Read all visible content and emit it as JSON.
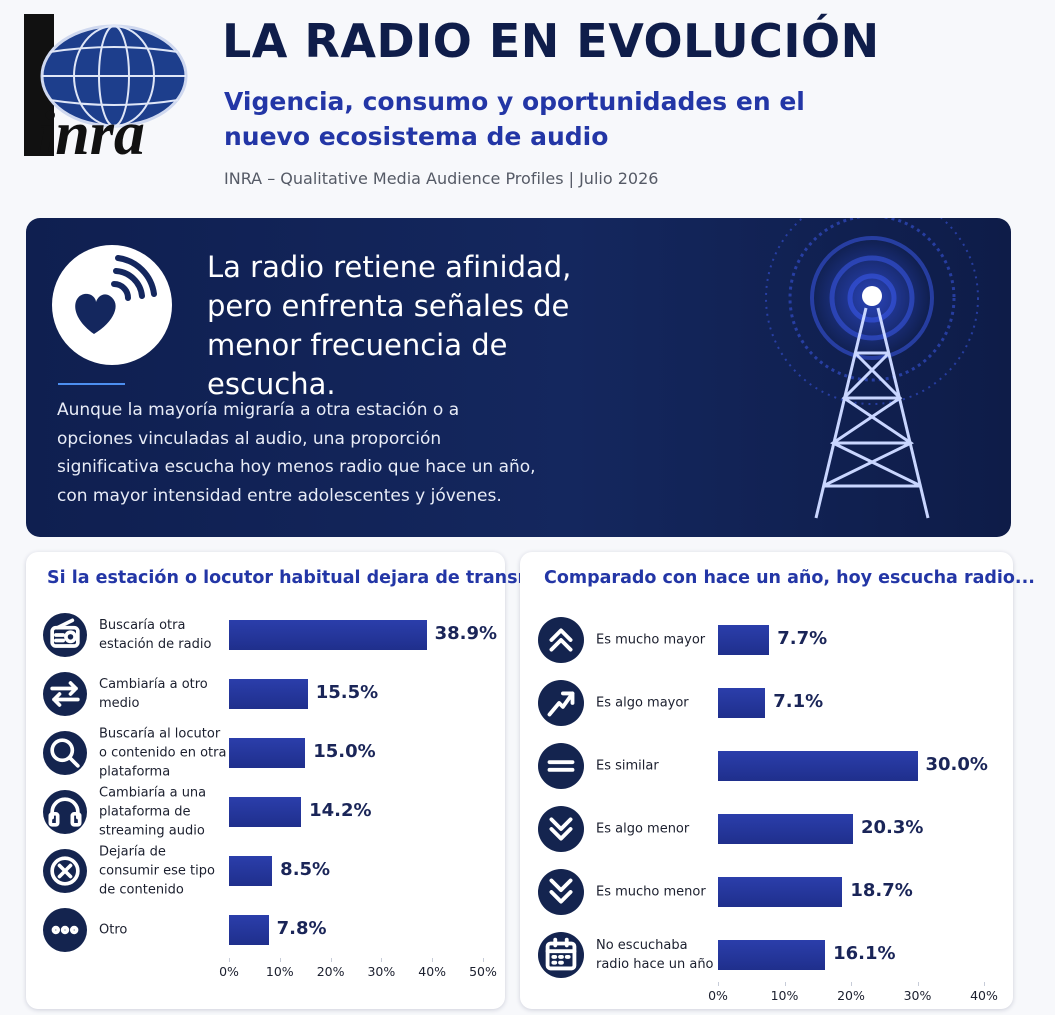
{
  "header": {
    "logo": "inra",
    "title": "LA RADIO EN EVOLUCIÓN",
    "subtitle": "Vigencia, consumo y oportunidades en el nuevo ecosistema de audio",
    "source": "INRA – Qualitative Media Audience Profiles | Julio 2026"
  },
  "banner": {
    "heading": "La radio retiene afinidad, pero enfrenta señales de menor frecuencia de escucha.",
    "text": "Aunque la mayoría migraría a otra estación o a opciones vinculadas al audio, una proporción significativa escucha hoy menos radio que hace un año, con mayor intensidad entre adolescentes y jóvenes."
  },
  "chart_data": [
    {
      "type": "bar",
      "orientation": "horizontal",
      "title": "Si la estación o locutor habitual dejara de transmitir",
      "color": "#2b3eab",
      "categories": [
        "Buscaría otra estación de radio",
        "Cambiaría a otro medio",
        "Buscaría al locutor o contenido en otra plataforma",
        "Cambiaría a una plataforma de streaming audio",
        "Dejaría de consumir ese tipo de contenido",
        "Otro"
      ],
      "values": [
        38.9,
        15.5,
        15.0,
        14.2,
        8.5,
        7.8
      ],
      "value_labels": [
        "38.9%",
        "15.5%",
        "15.0%",
        "14.2%",
        "8.5%",
        "7.8%"
      ],
      "xlim": [
        0,
        50
      ],
      "xticks": [
        {
          "value": 0,
          "label": "0%"
        },
        {
          "value": 10,
          "label": "10%"
        },
        {
          "value": 20,
          "label": "20%"
        },
        {
          "value": 30,
          "label": "30%"
        },
        {
          "value": 40,
          "label": "40%"
        },
        {
          "value": 50,
          "label": "50%"
        }
      ]
    },
    {
      "type": "bar",
      "orientation": "horizontal",
      "title": "Comparado con hace un año, hoy escucha radio...",
      "color": "#2b3eab",
      "categories": [
        "Es mucho mayor",
        "Es algo mayor",
        "Es similar",
        "Es algo menor",
        "Es mucho menor",
        "No escuchaba radio hace un año"
      ],
      "values": [
        7.7,
        7.1,
        30.0,
        20.3,
        18.7,
        16.1
      ],
      "value_labels": [
        "7.7%",
        "7.1%",
        "30.0%",
        "20.3%",
        "18.7%",
        "16.1%"
      ],
      "xlim": [
        0,
        40
      ],
      "xticks": [
        {
          "value": 0,
          "label": "0%"
        },
        {
          "value": 10,
          "label": "10%"
        },
        {
          "value": 20,
          "label": "20%"
        },
        {
          "value": 30,
          "label": "30%"
        },
        {
          "value": 40,
          "label": "40%"
        }
      ]
    }
  ]
}
